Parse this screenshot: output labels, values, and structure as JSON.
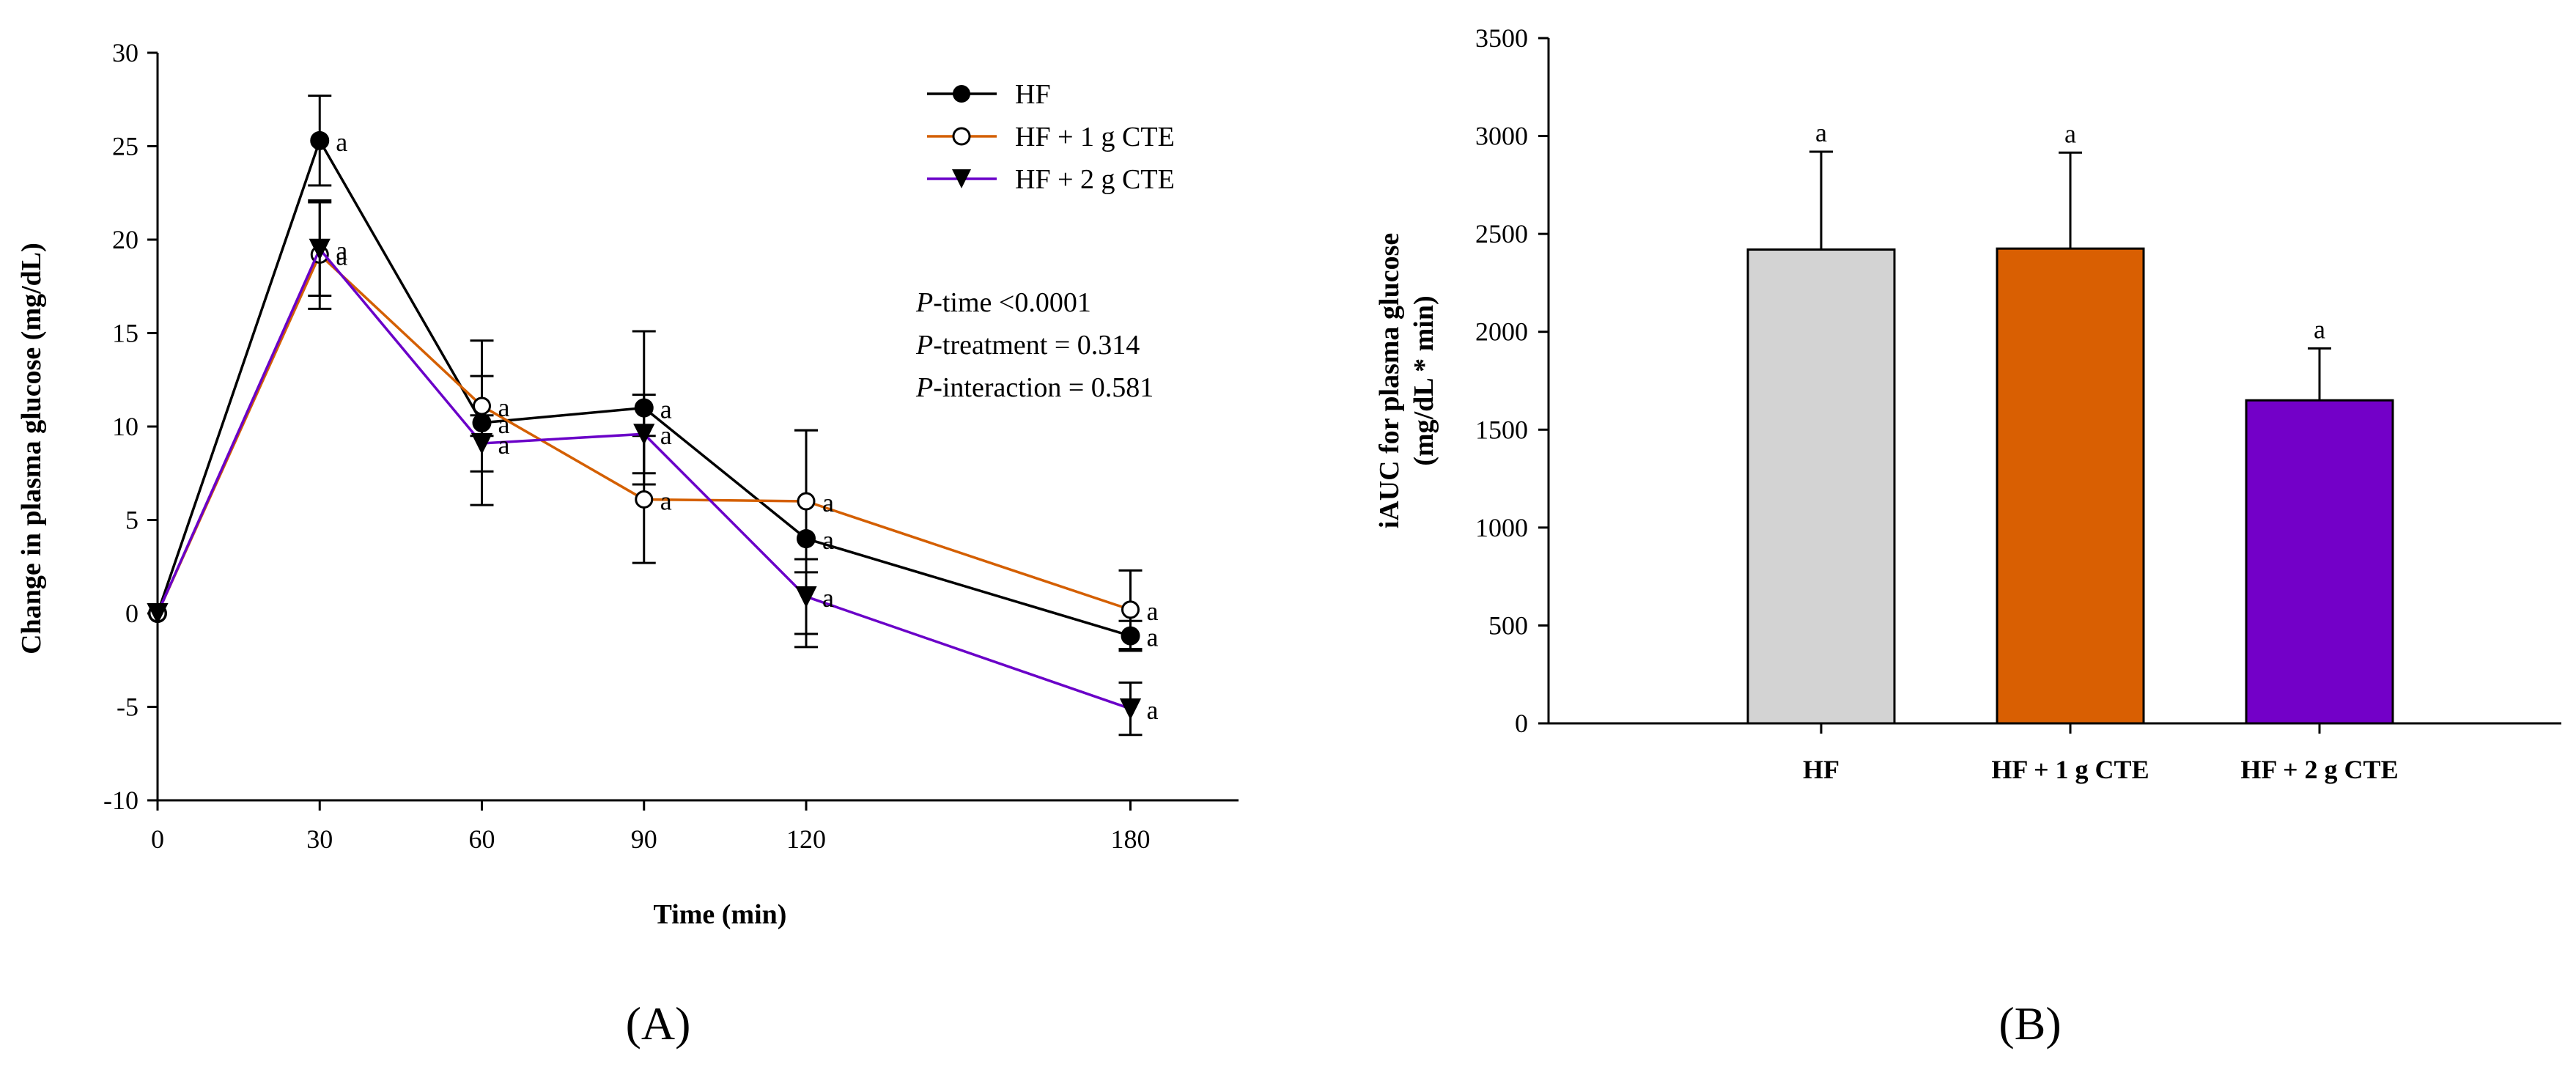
{
  "colors": {
    "hf": "#000000",
    "cte1": "#d45f00",
    "cte2": "#6a00c8",
    "bar_hf": "#d3d3d3",
    "bar_cte1": "#d95f02",
    "bar_cte2": "#7300c8"
  },
  "panel_a": {
    "label": "(A)",
    "stats": [
      {
        "italic": "P",
        "rest": "-time <0.0001"
      },
      {
        "italic": "P",
        "rest": "-treatment = 0.314"
      },
      {
        "italic": "P",
        "rest": "-interaction = 0.581"
      }
    ]
  },
  "panel_b": {
    "label": "(B)"
  },
  "chart_data": [
    {
      "type": "line",
      "xlabel": "Time (min)",
      "ylabel": "Change in plasma glucose (mg/dL)",
      "x": [
        0,
        30,
        60,
        90,
        120,
        180
      ],
      "x_ticks": [
        "0",
        "30",
        "60",
        "90",
        "120",
        "180"
      ],
      "xlim": [
        0,
        200
      ],
      "ylim": [
        -10,
        30
      ],
      "y_ticks": [
        "-10",
        "-5",
        "0",
        "5",
        "10",
        "15",
        "20",
        "25",
        "30"
      ],
      "legend_position": "top-right",
      "series": [
        {
          "name": "HF",
          "marker": "filled-circle",
          "color": "#000000",
          "values": [
            0,
            25.3,
            10.2,
            11.0,
            4.0,
            -1.2
          ],
          "errors": [
            0,
            2.4,
            4.4,
            4.1,
            5.8,
            0.8
          ],
          "sig_labels": [
            "",
            "a",
            "a",
            "a",
            "a",
            "a"
          ]
        },
        {
          "name": "HF + 1 g CTE",
          "marker": "open-circle",
          "color": "#d45f00",
          "values": [
            0,
            19.2,
            11.1,
            6.1,
            6.0,
            0.2
          ],
          "errors": [
            0,
            2.9,
            1.6,
            3.4,
            3.8,
            2.1
          ],
          "sig_labels": [
            "",
            "a",
            "a",
            "a",
            "a",
            "a"
          ]
        },
        {
          "name": "HF + 2 g CTE",
          "marker": "filled-triangle-down",
          "color": "#6a00c8",
          "values": [
            0,
            19.5,
            9.1,
            9.6,
            0.9,
            -5.1
          ],
          "errors": [
            0,
            2.5,
            1.5,
            2.1,
            2.0,
            1.4
          ],
          "sig_labels": [
            "",
            "a",
            "a",
            "a",
            "a",
            "a"
          ]
        }
      ]
    },
    {
      "type": "bar",
      "xlabel": "",
      "ylabel_line1": "iAUC for plasma glucose",
      "ylabel_line2": "(mg/dL * min)",
      "categories": [
        "HF",
        "HF + 1 g CTE",
        "HF + 2 g CTE"
      ],
      "values": [
        2420,
        2425,
        1650
      ],
      "errors": [
        500,
        490,
        265
      ],
      "sig_labels": [
        "a",
        "a",
        "a"
      ],
      "ylim": [
        0,
        3500
      ],
      "y_ticks": [
        "0",
        "500",
        "1000",
        "1500",
        "2000",
        "2500",
        "3000",
        "3500"
      ]
    }
  ]
}
